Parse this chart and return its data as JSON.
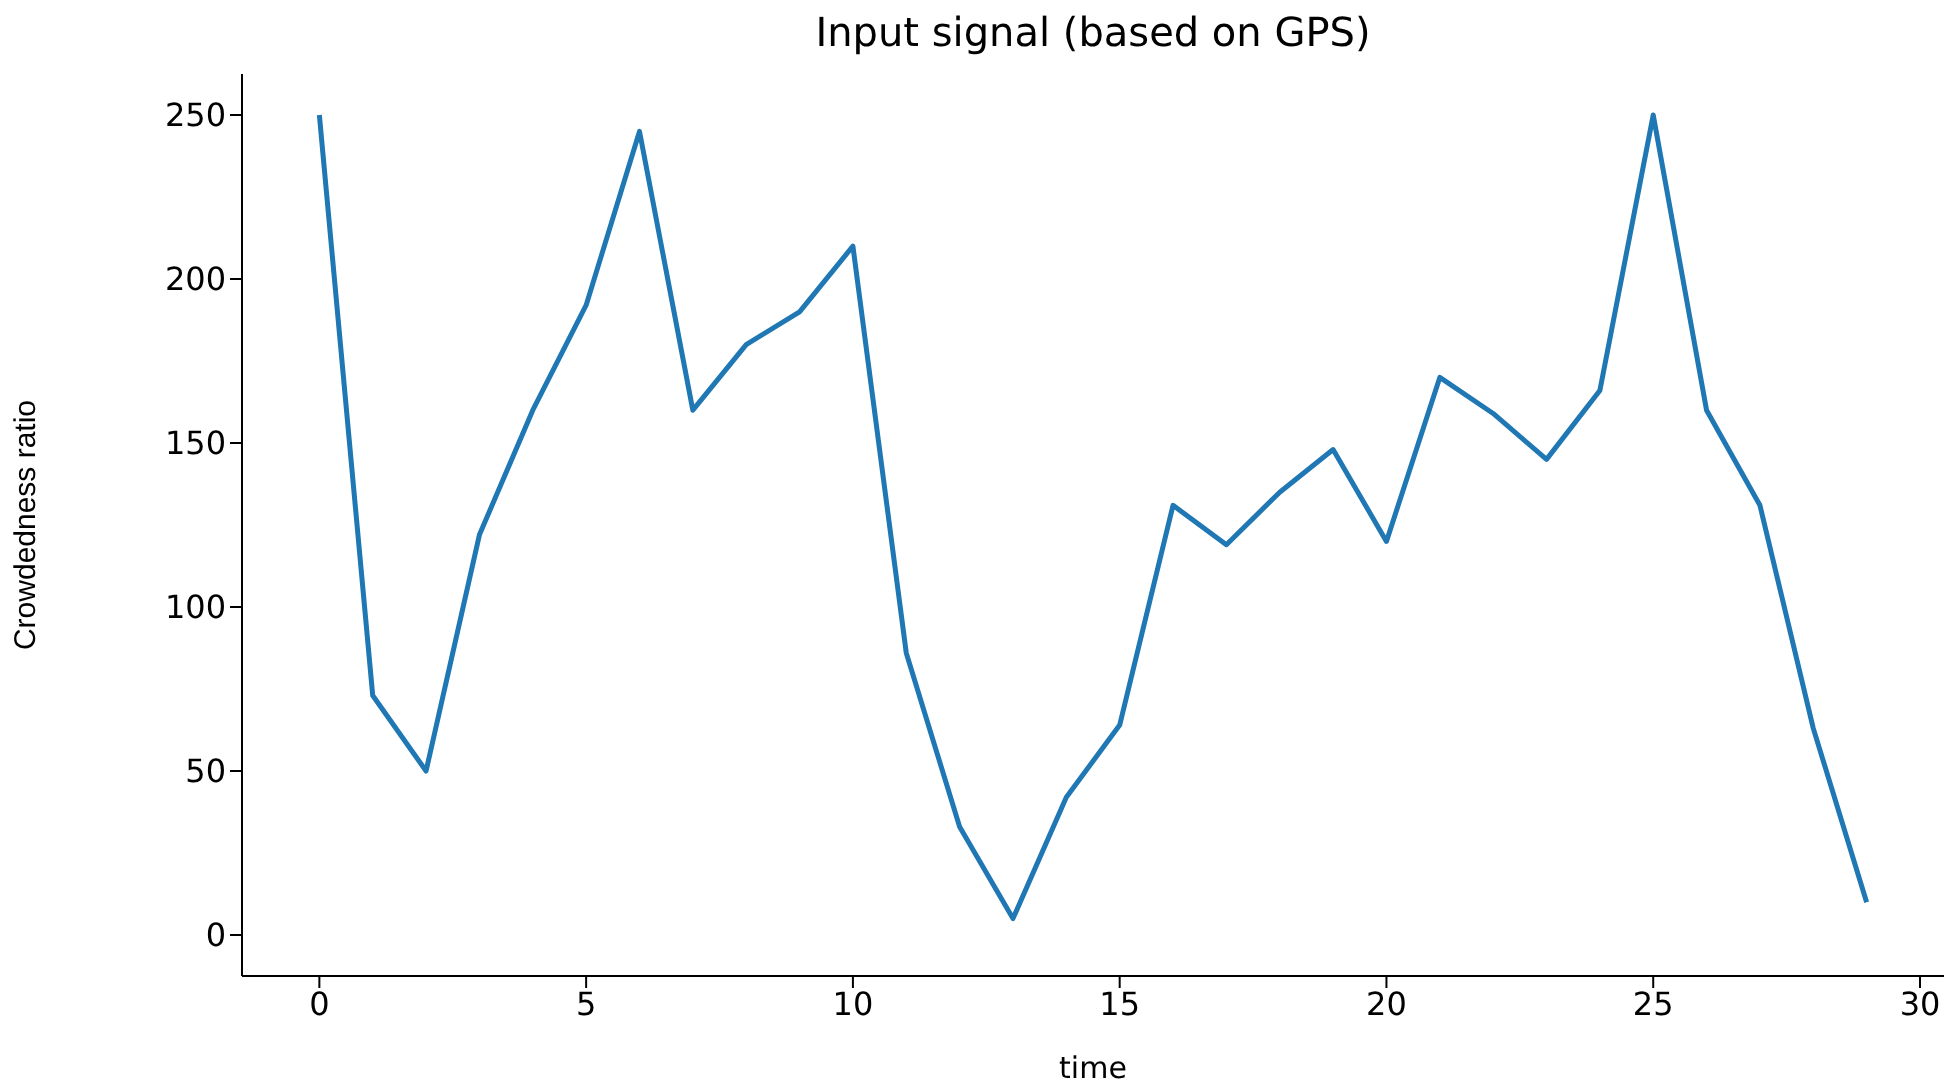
{
  "chart_data": {
    "type": "line",
    "title": "Input signal (based on GPS)",
    "xlabel": "time",
    "ylabel": "Crowdedness ratio",
    "x": [
      0,
      1,
      2,
      3,
      4,
      5,
      6,
      7,
      8,
      9,
      10,
      11,
      12,
      13,
      14,
      15,
      16,
      17,
      18,
      19,
      20,
      21,
      22,
      23,
      24,
      25,
      26,
      27,
      28,
      29
    ],
    "series": [
      {
        "color": "#1f77b4",
        "values": [
          250,
          73,
          50,
          122,
          160,
          192,
          245,
          160,
          180,
          190,
          210,
          86,
          33,
          5,
          42,
          64,
          131,
          119,
          135,
          148,
          120,
          170,
          159,
          145,
          166,
          250,
          160,
          131,
          63,
          10
        ]
      }
    ],
    "xlim": [
      -1.45,
      30.45
    ],
    "xticks": [
      0,
      5,
      10,
      15,
      20,
      25,
      30
    ],
    "ylim": [
      -12.5,
      262.5
    ],
    "yticks": [
      0,
      50,
      100,
      150,
      200,
      250
    ],
    "grid": false,
    "legend": false,
    "marker": "none",
    "line_style": "solid"
  }
}
